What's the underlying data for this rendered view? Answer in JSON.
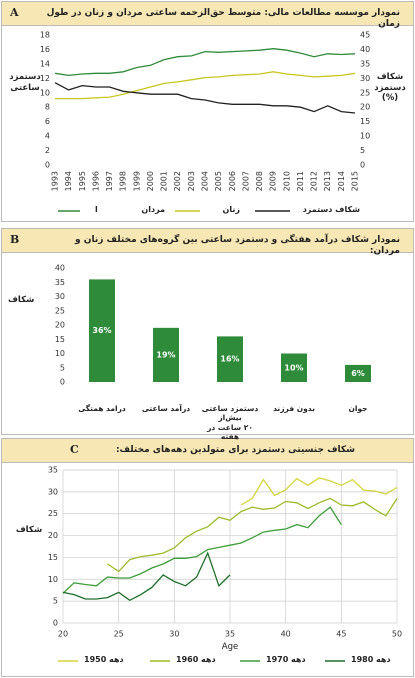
{
  "chart_data": [
    {
      "type": "line",
      "panel": "A",
      "title": "نمودار موسسه مطالعات مالی: متوسط حق‌الزحمه ساعتی مردان و زنان در طول زمان",
      "y_label": "دستمزد\nساعتی",
      "y2_label": "شکاف\nدستمزد\n(%)",
      "x": [
        1993,
        1994,
        1995,
        1996,
        1997,
        1998,
        1999,
        2000,
        2001,
        2002,
        2003,
        2004,
        2005,
        2006,
        2007,
        2008,
        2009,
        2010,
        2011,
        2012,
        2013,
        2014,
        2015
      ],
      "xlim": [
        1993,
        2015
      ],
      "xticks": [
        1993,
        1994,
        1995,
        1996,
        1997,
        1998,
        1999,
        2000,
        2001,
        2002,
        2003,
        2004,
        2005,
        2006,
        2007,
        2008,
        2009,
        2010,
        2011,
        2012,
        2013,
        2014,
        2015
      ],
      "ylim": [
        0,
        18
      ],
      "yticks": [
        0,
        2,
        4,
        6,
        8,
        10,
        12,
        14,
        16,
        18
      ],
      "y2lim": [
        0,
        45
      ],
      "y2ticks": [
        0,
        5,
        10,
        15,
        20,
        25,
        30,
        35,
        40,
        45
      ],
      "grid": false,
      "legend_note": "ا",
      "series": [
        {
          "name": "مردان",
          "color": "#2e8b3a",
          "values": [
            12.7,
            12.4,
            12.6,
            12.7,
            12.7,
            12.9,
            13.5,
            13.8,
            14.6,
            15.0,
            15.1,
            15.7,
            15.6,
            15.7,
            15.8,
            15.9,
            16.1,
            15.9,
            15.5,
            15.0,
            15.4,
            15.3,
            15.4
          ]
        },
        {
          "name": "زنان",
          "color": "#c8c620",
          "values": [
            9.2,
            9.2,
            9.2,
            9.3,
            9.4,
            9.8,
            10.3,
            10.8,
            11.3,
            11.5,
            11.8,
            12.1,
            12.2,
            12.4,
            12.5,
            12.6,
            12.9,
            12.6,
            12.4,
            12.2,
            12.3,
            12.4,
            12.7
          ]
        },
        {
          "name": "شکاف دستمزد",
          "color": "#222222",
          "axis": "y2",
          "values": [
            28.5,
            26,
            27.5,
            27,
            27,
            25.5,
            25,
            24.5,
            24.5,
            24.5,
            23,
            22.5,
            21.5,
            21,
            21,
            21,
            20.5,
            20.5,
            20,
            18.5,
            20.5,
            18.5,
            18
          ]
        }
      ]
    },
    {
      "type": "bar",
      "panel": "B",
      "title": "نمودار شکاف درآمد هفتگی و دستمزد ساعتی بین گروه‌های مختلف زنان و مردان:",
      "y_label": "شکاف",
      "categories": [
        "درامد همتگی",
        "درآمد ساعتی",
        "دستمزد ساعتی بیش‌از\n۲۰ ساعت در هفته",
        "بدون فرزند",
        "جوان"
      ],
      "values": [
        36,
        19,
        16,
        10,
        6
      ],
      "value_labels": [
        "36%",
        "19%",
        "16%",
        "10%",
        "6%"
      ],
      "color": "#2e8b3a",
      "ylim": [
        0,
        40
      ],
      "yticks": [
        0,
        5,
        10,
        15,
        20,
        25,
        30,
        35,
        40
      ],
      "grid": false
    },
    {
      "type": "line",
      "panel": "C",
      "title": "شکاف جنسیتی دستمزد برای متولدین دهه‌های مختلف:",
      "x_label": "Age",
      "y_label": "شکاف",
      "xlim": [
        20,
        50
      ],
      "xticks": [
        20,
        25,
        30,
        35,
        40,
        45,
        50
      ],
      "ylim": [
        0,
        35
      ],
      "yticks": [
        0,
        5,
        10,
        15,
        20,
        25,
        30,
        35
      ],
      "grid": true,
      "series": [
        {
          "name": "دهه 1950",
          "color": "#d4d43a",
          "x": [
            36,
            37,
            38,
            39,
            40,
            41,
            42,
            43,
            44,
            45,
            46,
            47,
            48,
            49,
            50
          ],
          "values": [
            27,
            28.5,
            32.8,
            29.2,
            30.5,
            33,
            31.5,
            33.2,
            32.5,
            31.5,
            32.8,
            30.4,
            30.2,
            29.5,
            31
          ]
        },
        {
          "name": "دهه 1960",
          "color": "#9dbb2a",
          "x": [
            24,
            25,
            26,
            27,
            28,
            29,
            30,
            31,
            32,
            33,
            34,
            35,
            36,
            37,
            38,
            39,
            40,
            41,
            42,
            43,
            44,
            45,
            46,
            47,
            48,
            49,
            50
          ],
          "values": [
            13.5,
            11.8,
            14.5,
            15.2,
            15.5,
            16,
            17.2,
            19.5,
            21,
            22,
            24.2,
            23.5,
            25.5,
            26.5,
            26,
            26.3,
            27.8,
            27.5,
            26.2,
            27.5,
            28.5,
            27,
            26.8,
            27.7,
            26,
            24.5,
            28.5
          ]
        },
        {
          "name": "دهه 1970",
          "color": "#3e9e3a",
          "x": [
            20,
            21,
            22,
            23,
            24,
            25,
            26,
            27,
            28,
            29,
            30,
            31,
            32,
            33,
            34,
            35,
            36,
            37,
            38,
            39,
            40,
            41,
            42,
            43,
            44,
            45
          ],
          "values": [
            6.8,
            9.2,
            8.8,
            8.5,
            10.5,
            10.3,
            10.3,
            11.3,
            12.6,
            13.5,
            14.8,
            14.8,
            15.2,
            16.8,
            17.3,
            17.8,
            18.3,
            19.5,
            20.8,
            21.2,
            21.5,
            22.5,
            21.8,
            24.5,
            26.5,
            22.5
          ]
        },
        {
          "name": "دهه 1980",
          "color": "#1d6f2a",
          "x": [
            20,
            21,
            22,
            23,
            24,
            25,
            26,
            27,
            28,
            29,
            30,
            31,
            32,
            33,
            34,
            35
          ],
          "values": [
            7,
            6.5,
            5.5,
            5.5,
            5.8,
            7,
            5.2,
            6.5,
            8.2,
            11,
            9.5,
            8.5,
            10.5,
            16,
            8.5,
            11
          ]
        }
      ]
    }
  ]
}
